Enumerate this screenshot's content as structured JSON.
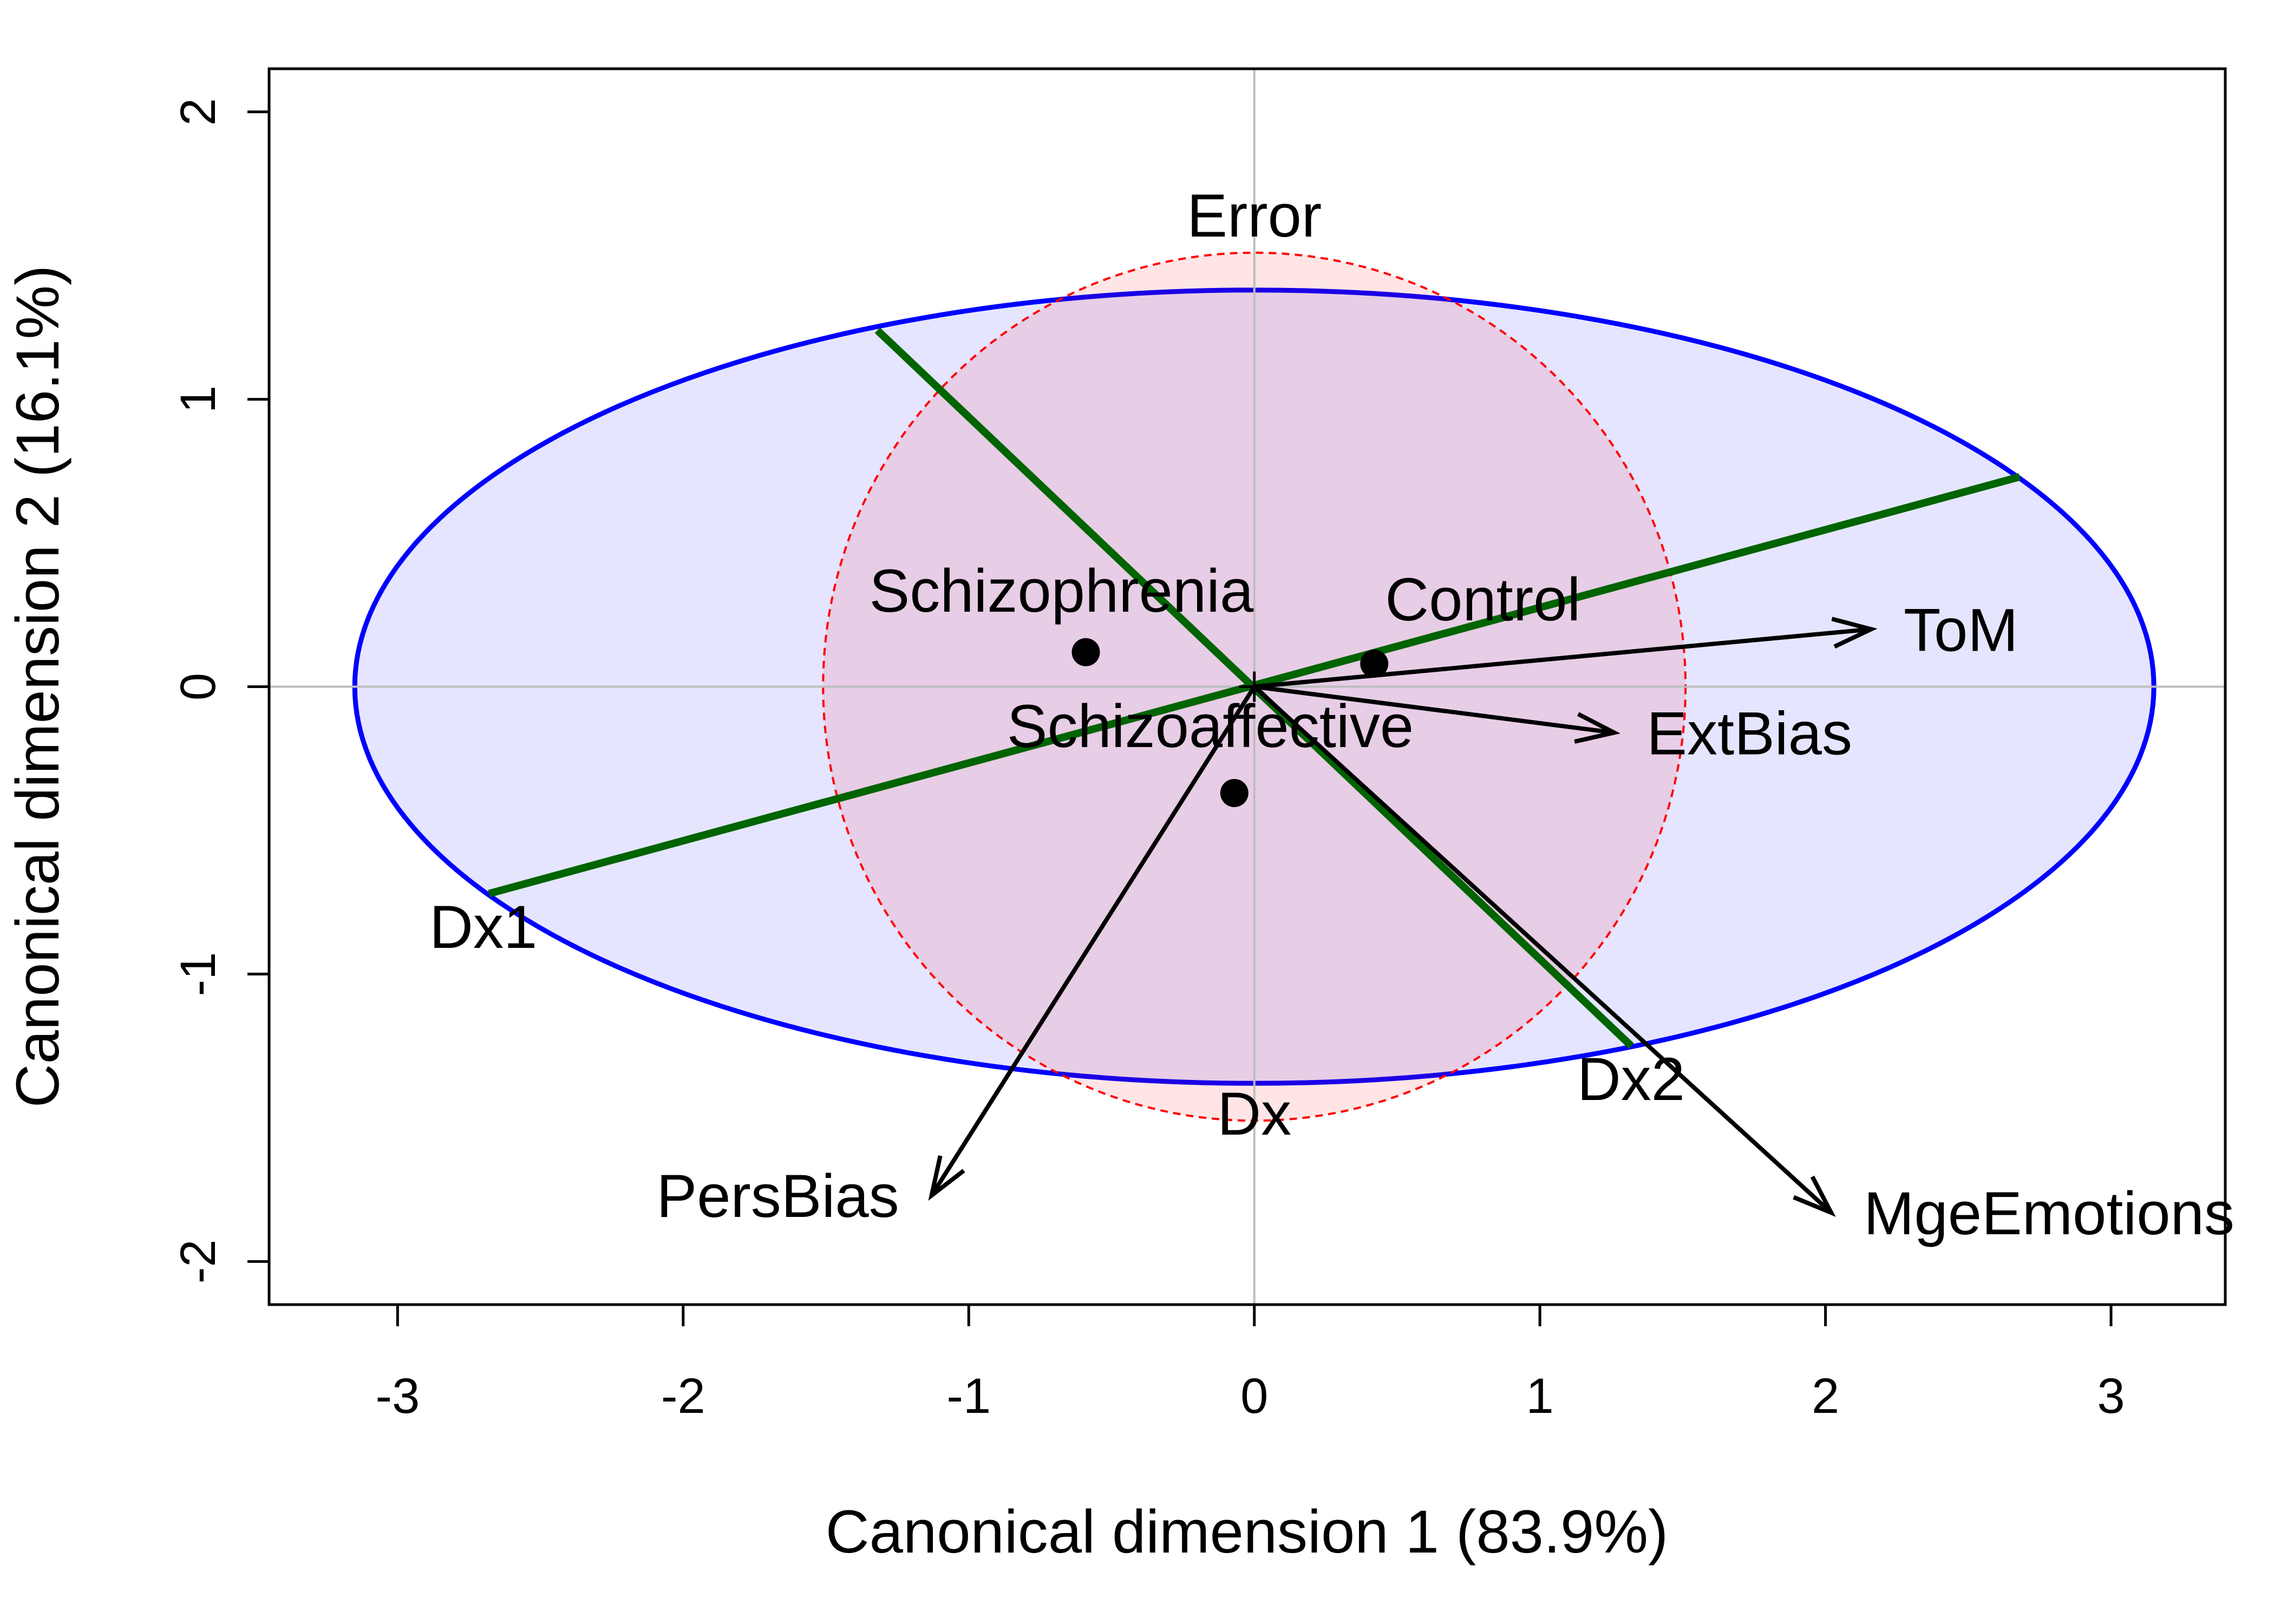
{
  "chart_data": {
    "type": "scatter",
    "xlabel": "Canonical dimension 1 (83.9%)",
    "ylabel": "Canonical dimension 2 (16.1%)",
    "xlim": [
      -3.45,
      3.4
    ],
    "ylim": [
      -2.15,
      2.15
    ],
    "x_ticks": [
      {
        "value": -3,
        "label": "-3"
      },
      {
        "value": -2,
        "label": "-2"
      },
      {
        "value": -1,
        "label": "-1"
      },
      {
        "value": 0,
        "label": "0"
      },
      {
        "value": 1,
        "label": "1"
      },
      {
        "value": 2,
        "label": "2"
      },
      {
        "value": 3,
        "label": "3"
      }
    ],
    "y_ticks": [
      {
        "value": -2,
        "label": "-2"
      },
      {
        "value": -1,
        "label": "-1"
      },
      {
        "value": 0,
        "label": "0"
      },
      {
        "value": 1,
        "label": "1"
      },
      {
        "value": 2,
        "label": "2"
      }
    ],
    "grid": "reference lines at x=0 and y=0",
    "ellipses": [
      {
        "label": "Dx",
        "center": [
          0,
          0
        ],
        "rx": 3.15,
        "ry": 1.38,
        "stroke": "#0000ff",
        "fill": "#0000ff",
        "fill_opacity": 0.1,
        "dashed": false
      },
      {
        "label": "Error",
        "center": [
          0,
          0
        ],
        "rx": 1.51,
        "ry": 1.51,
        "stroke": "#ff0000",
        "fill": "#ff0000",
        "fill_opacity": 0.1,
        "dashed": true
      }
    ],
    "contrasts": [
      {
        "label": "Dx1",
        "from": [
          -2.68,
          -0.72
        ],
        "to": [
          2.68,
          0.73
        ],
        "color": "#006400"
      },
      {
        "label": "Dx2",
        "from": [
          -1.32,
          1.24
        ],
        "to": [
          1.32,
          -1.25
        ],
        "color": "#006400"
      }
    ],
    "points": [
      {
        "label": "Schizophrenia",
        "x": -0.59,
        "y": 0.12
      },
      {
        "label": "Control",
        "x": 0.42,
        "y": 0.08
      },
      {
        "label": "Schizoaffective",
        "x": -0.07,
        "y": -0.37
      }
    ],
    "vectors": [
      {
        "label": "ToM",
        "x": 2.16,
        "y": 0.2
      },
      {
        "label": "ExtBias",
        "x": 1.26,
        "y": -0.16
      },
      {
        "label": "PersBias",
        "x": -1.13,
        "y": -1.77
      },
      {
        "label": "MgeEmotions",
        "x": 2.02,
        "y": -1.83
      }
    ],
    "colors": {
      "dx": "#0000ff",
      "error": "#ff0000",
      "contrast": "#006400",
      "vector": "#000000",
      "point": "#000000",
      "refline": "#bebebe"
    }
  }
}
